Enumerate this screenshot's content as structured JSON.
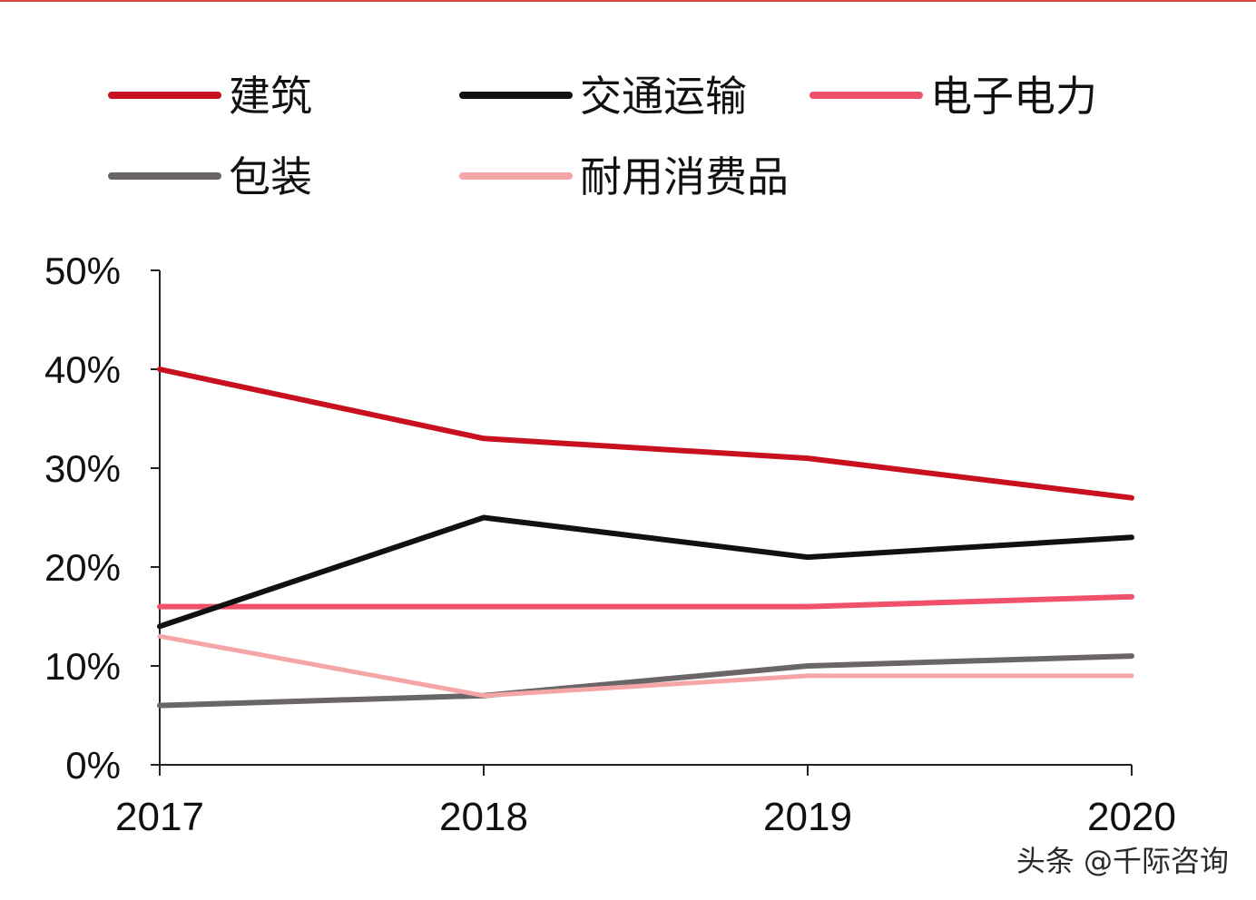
{
  "chart_data": {
    "type": "line",
    "categories": [
      "2017",
      "2018",
      "2019",
      "2020"
    ],
    "ylim": [
      0,
      50
    ],
    "yticks": [
      "0%",
      "10%",
      "20%",
      "30%",
      "40%",
      "50%"
    ],
    "ytick_values": [
      0,
      10,
      20,
      30,
      40,
      50
    ],
    "grid": false,
    "legend_position": "top",
    "series": [
      {
        "name": "建筑",
        "color": "#c8101e",
        "values": [
          40,
          33,
          31,
          27
        ]
      },
      {
        "name": "交通运输",
        "color": "#111111",
        "values": [
          14,
          25,
          21,
          23
        ]
      },
      {
        "name": "电子电力",
        "color": "#f0506a",
        "values": [
          16,
          16,
          16,
          17
        ]
      },
      {
        "name": "包装",
        "color": "#6a6566",
        "values": [
          6,
          7,
          10,
          11
        ]
      },
      {
        "name": "耐用消费品",
        "color": "#f5a5a5",
        "values": [
          13,
          7,
          9,
          9
        ]
      }
    ]
  },
  "watermark": "头条 @千际咨询"
}
